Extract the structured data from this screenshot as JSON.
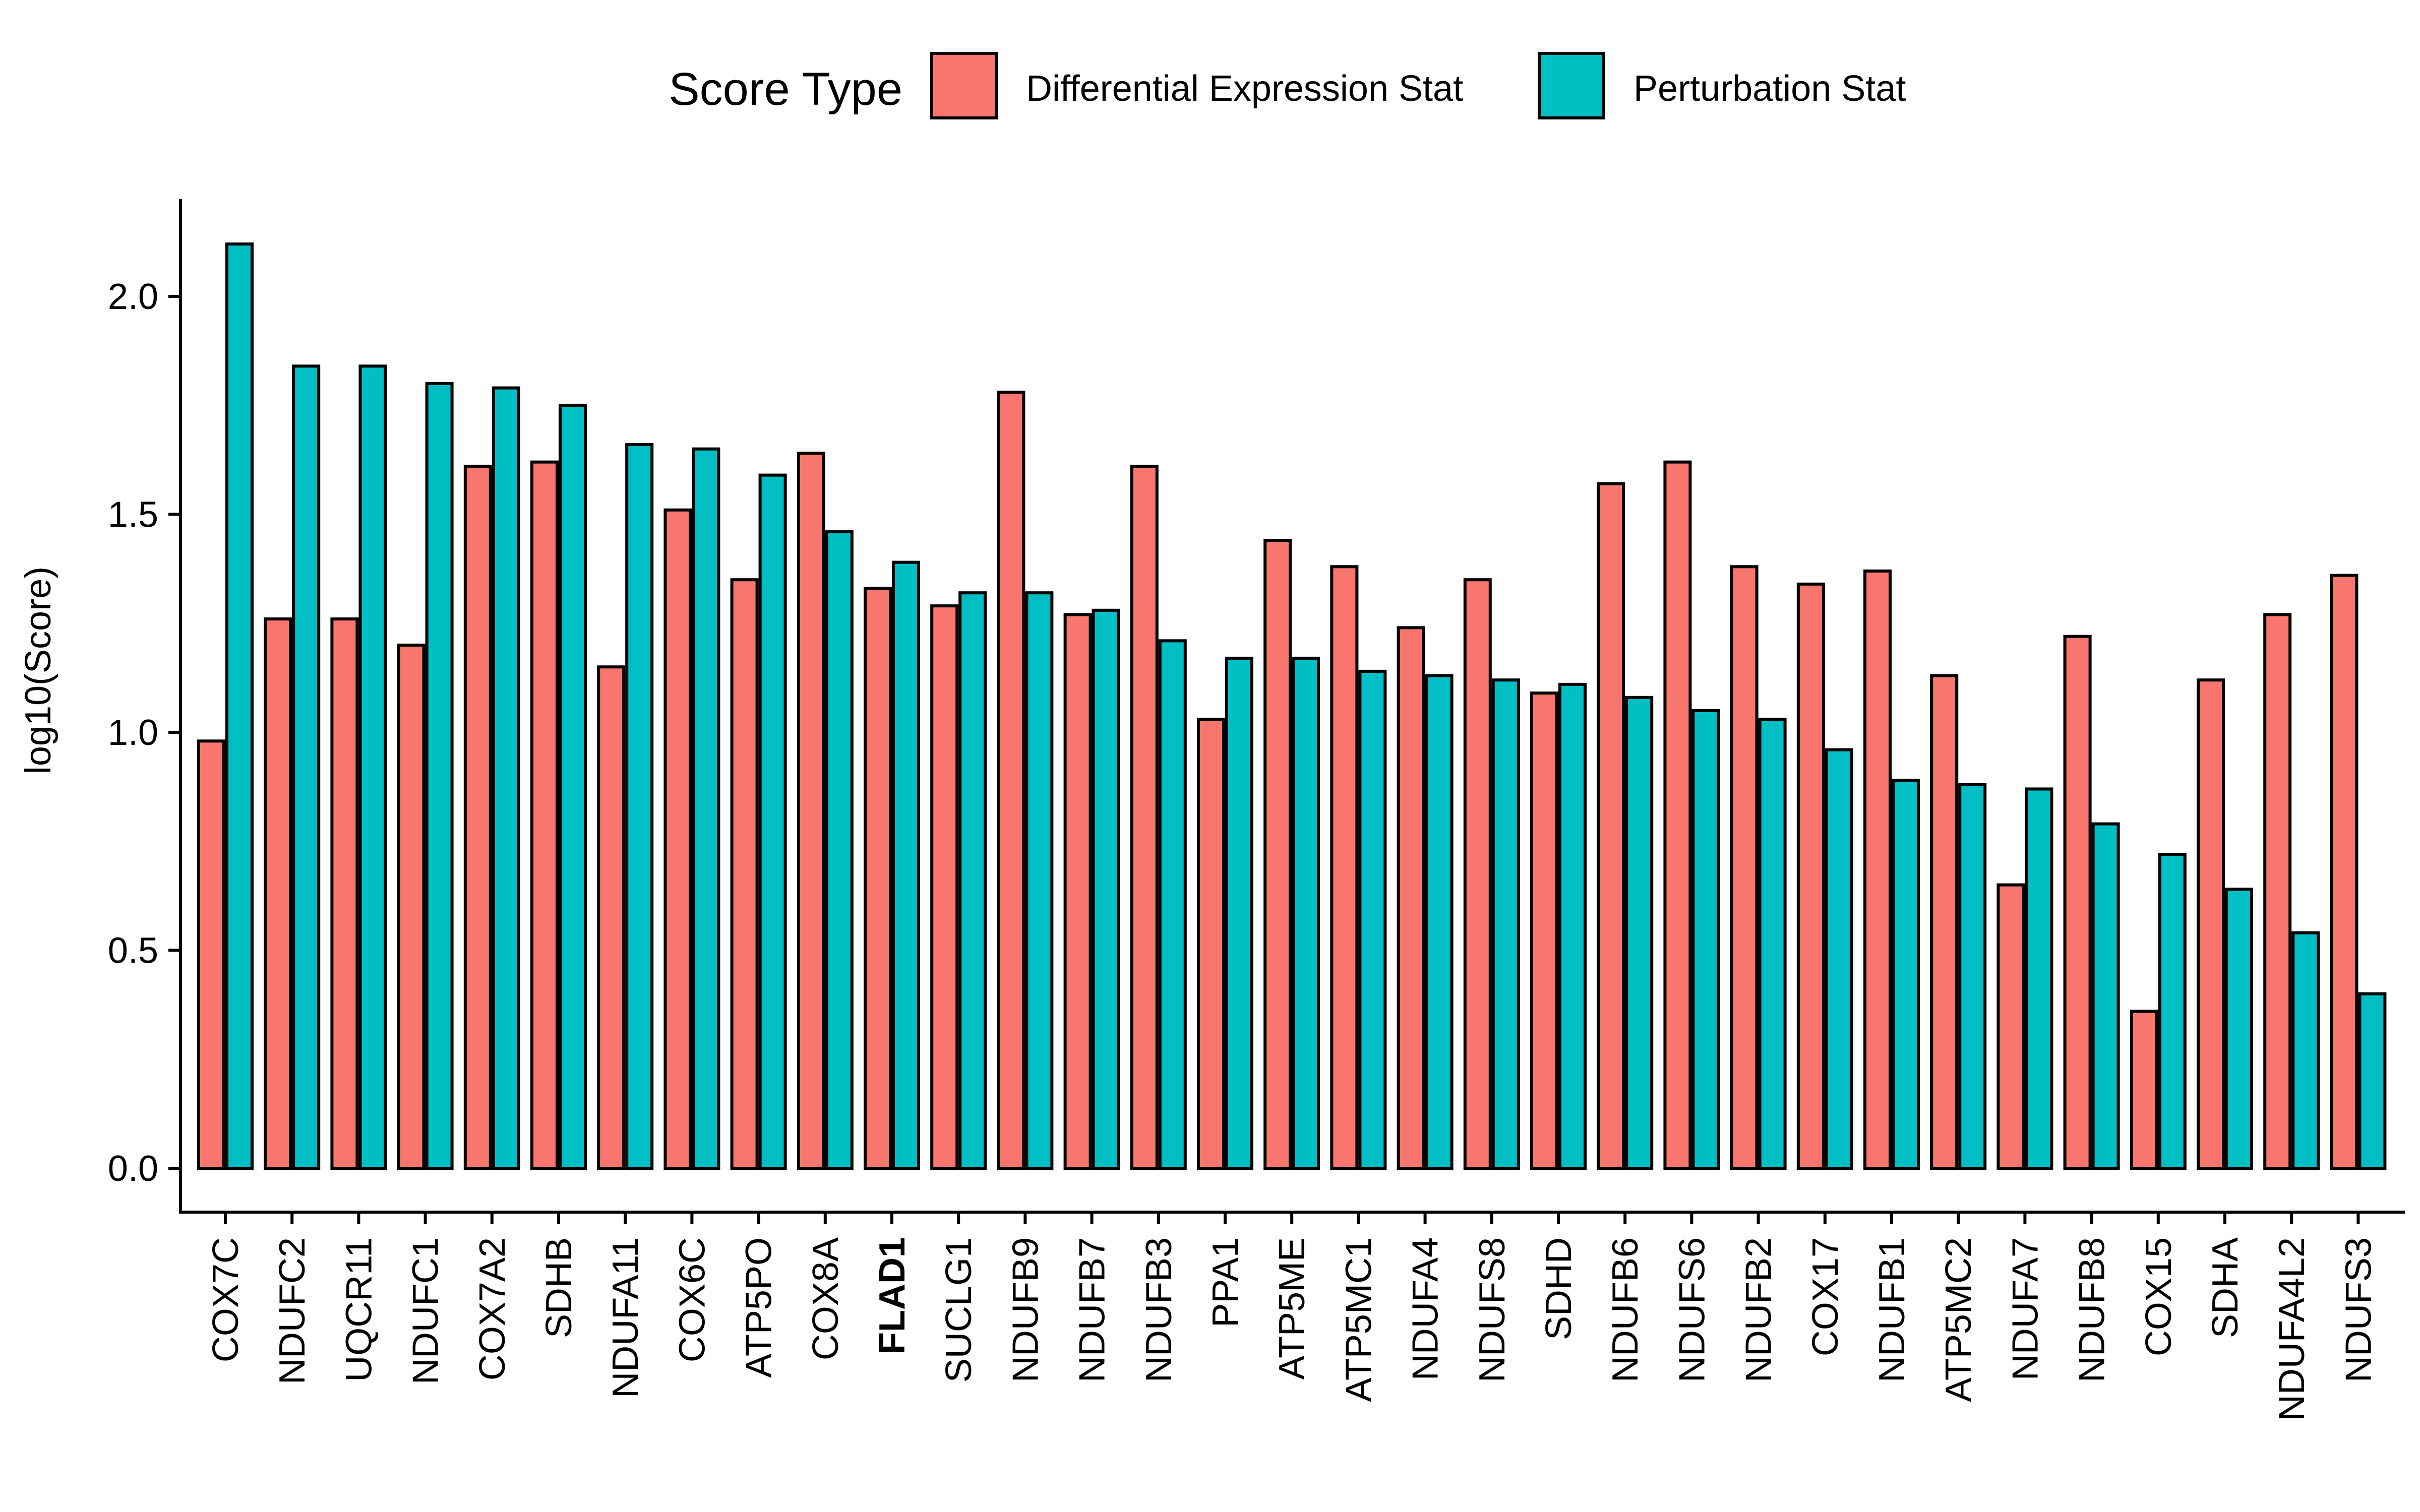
{
  "chart_data": {
    "type": "bar",
    "title": "",
    "xlabel": "",
    "ylabel": "log10(Score)",
    "ylim": [
      -0.1,
      2.25
    ],
    "yticks": [
      "0.0",
      "0.5",
      "1.0",
      "1.5",
      "2.0"
    ],
    "yticks_values": [
      0,
      0.5,
      1.0,
      1.5,
      2.0
    ],
    "grid": false,
    "legend": {
      "title": "Score Type",
      "position": "top"
    },
    "highlight": {
      "category": "FLAD1",
      "color": "#ff0000"
    },
    "categories": [
      "COX7C",
      "NDUFC2",
      "UQCR11",
      "NDUFC1",
      "COX7A2",
      "SDHB",
      "NDUFA11",
      "COX6C",
      "ATP5PO",
      "COX8A",
      "FLAD1",
      "SUCLG1",
      "NDUFB9",
      "NDUFB7",
      "NDUFB3",
      "PPA1",
      "ATP5ME",
      "ATP5MC1",
      "NDUFA4",
      "NDUFS8",
      "SDHD",
      "NDUFB6",
      "NDUFS6",
      "NDUFB2",
      "COX17",
      "NDUFB1",
      "ATP5MC2",
      "NDUFA7",
      "NDUFB8",
      "COX15",
      "SDHA",
      "NDUFA4L2",
      "NDUFS3"
    ],
    "series": [
      {
        "name": "Differential Expression Stat",
        "color": "#f8766d",
        "values": [
          0.98,
          1.26,
          1.26,
          1.2,
          1.61,
          1.62,
          1.15,
          1.51,
          1.35,
          1.64,
          1.33,
          1.29,
          1.78,
          1.27,
          1.61,
          1.03,
          1.44,
          1.38,
          1.24,
          1.35,
          1.09,
          1.57,
          1.62,
          1.38,
          1.34,
          1.37,
          1.13,
          0.65,
          1.22,
          0.36,
          1.12,
          1.27,
          1.36
        ]
      },
      {
        "name": "Perturbation Stat",
        "color": "#00bfc4",
        "values": [
          2.12,
          1.84,
          1.84,
          1.8,
          1.79,
          1.75,
          1.66,
          1.65,
          1.59,
          1.46,
          1.39,
          1.32,
          1.32,
          1.28,
          1.21,
          1.17,
          1.17,
          1.14,
          1.13,
          1.12,
          1.11,
          1.08,
          1.05,
          1.03,
          0.96,
          0.89,
          0.88,
          0.87,
          0.79,
          0.72,
          0.64,
          0.54,
          0.4
        ]
      }
    ]
  }
}
